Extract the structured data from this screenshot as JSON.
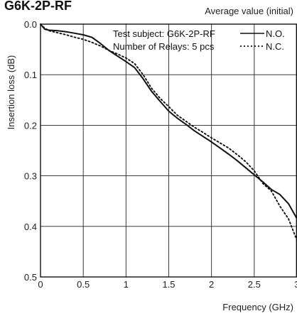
{
  "chart_data": {
    "type": "line",
    "title": "G6K-2P-RF",
    "subtitle": "Average value (initial)",
    "xlabel": "Frequency (GHz)",
    "ylabel": "Insertion loss (dB)",
    "xlim": [
      0,
      3
    ],
    "ylim": [
      0.5,
      0.0
    ],
    "y_inverted": true,
    "grid": true,
    "x_ticks": [
      "0",
      "0.5",
      "1",
      "1.5",
      "2",
      "2.5",
      "3"
    ],
    "y_ticks": [
      "0.0",
      "0.1",
      "0.2",
      "0.3",
      "0.4",
      "0.5"
    ],
    "legend": {
      "placement": "top-right",
      "line1": "Test subject: G6K-2P-RF",
      "line2": "Number of Relays: 5 pcs"
    },
    "series": [
      {
        "name": "N.O.",
        "style": "solid",
        "x": [
          0,
          0.05,
          0.1,
          0.2,
          0.3,
          0.4,
          0.5,
          0.6,
          0.7,
          0.8,
          0.9,
          1.0,
          1.1,
          1.2,
          1.3,
          1.4,
          1.5,
          1.6,
          1.7,
          1.8,
          1.9,
          2.0,
          2.1,
          2.2,
          2.3,
          2.4,
          2.5,
          2.6,
          2.7,
          2.8,
          2.9,
          3.0
        ],
        "y": [
          0.0,
          0.01,
          0.012,
          0.013,
          0.015,
          0.018,
          0.021,
          0.026,
          0.038,
          0.052,
          0.063,
          0.074,
          0.086,
          0.108,
          0.133,
          0.153,
          0.172,
          0.186,
          0.198,
          0.211,
          0.222,
          0.233,
          0.245,
          0.257,
          0.27,
          0.284,
          0.298,
          0.312,
          0.327,
          0.337,
          0.355,
          0.385
        ]
      },
      {
        "name": "N.C.",
        "style": "dotted",
        "x": [
          0,
          0.05,
          0.1,
          0.2,
          0.3,
          0.4,
          0.5,
          0.6,
          0.7,
          0.8,
          0.9,
          1.0,
          1.1,
          1.2,
          1.3,
          1.4,
          1.5,
          1.6,
          1.7,
          1.8,
          1.9,
          2.0,
          2.1,
          2.2,
          2.3,
          2.4,
          2.5,
          2.6,
          2.7,
          2.8,
          2.9,
          3.0
        ],
        "y": [
          0.0,
          0.008,
          0.013,
          0.017,
          0.021,
          0.026,
          0.03,
          0.036,
          0.043,
          0.052,
          0.059,
          0.067,
          0.078,
          0.1,
          0.127,
          0.147,
          0.163,
          0.18,
          0.192,
          0.204,
          0.214,
          0.225,
          0.235,
          0.245,
          0.258,
          0.272,
          0.29,
          0.315,
          0.33,
          0.36,
          0.385,
          0.428
        ]
      }
    ]
  }
}
